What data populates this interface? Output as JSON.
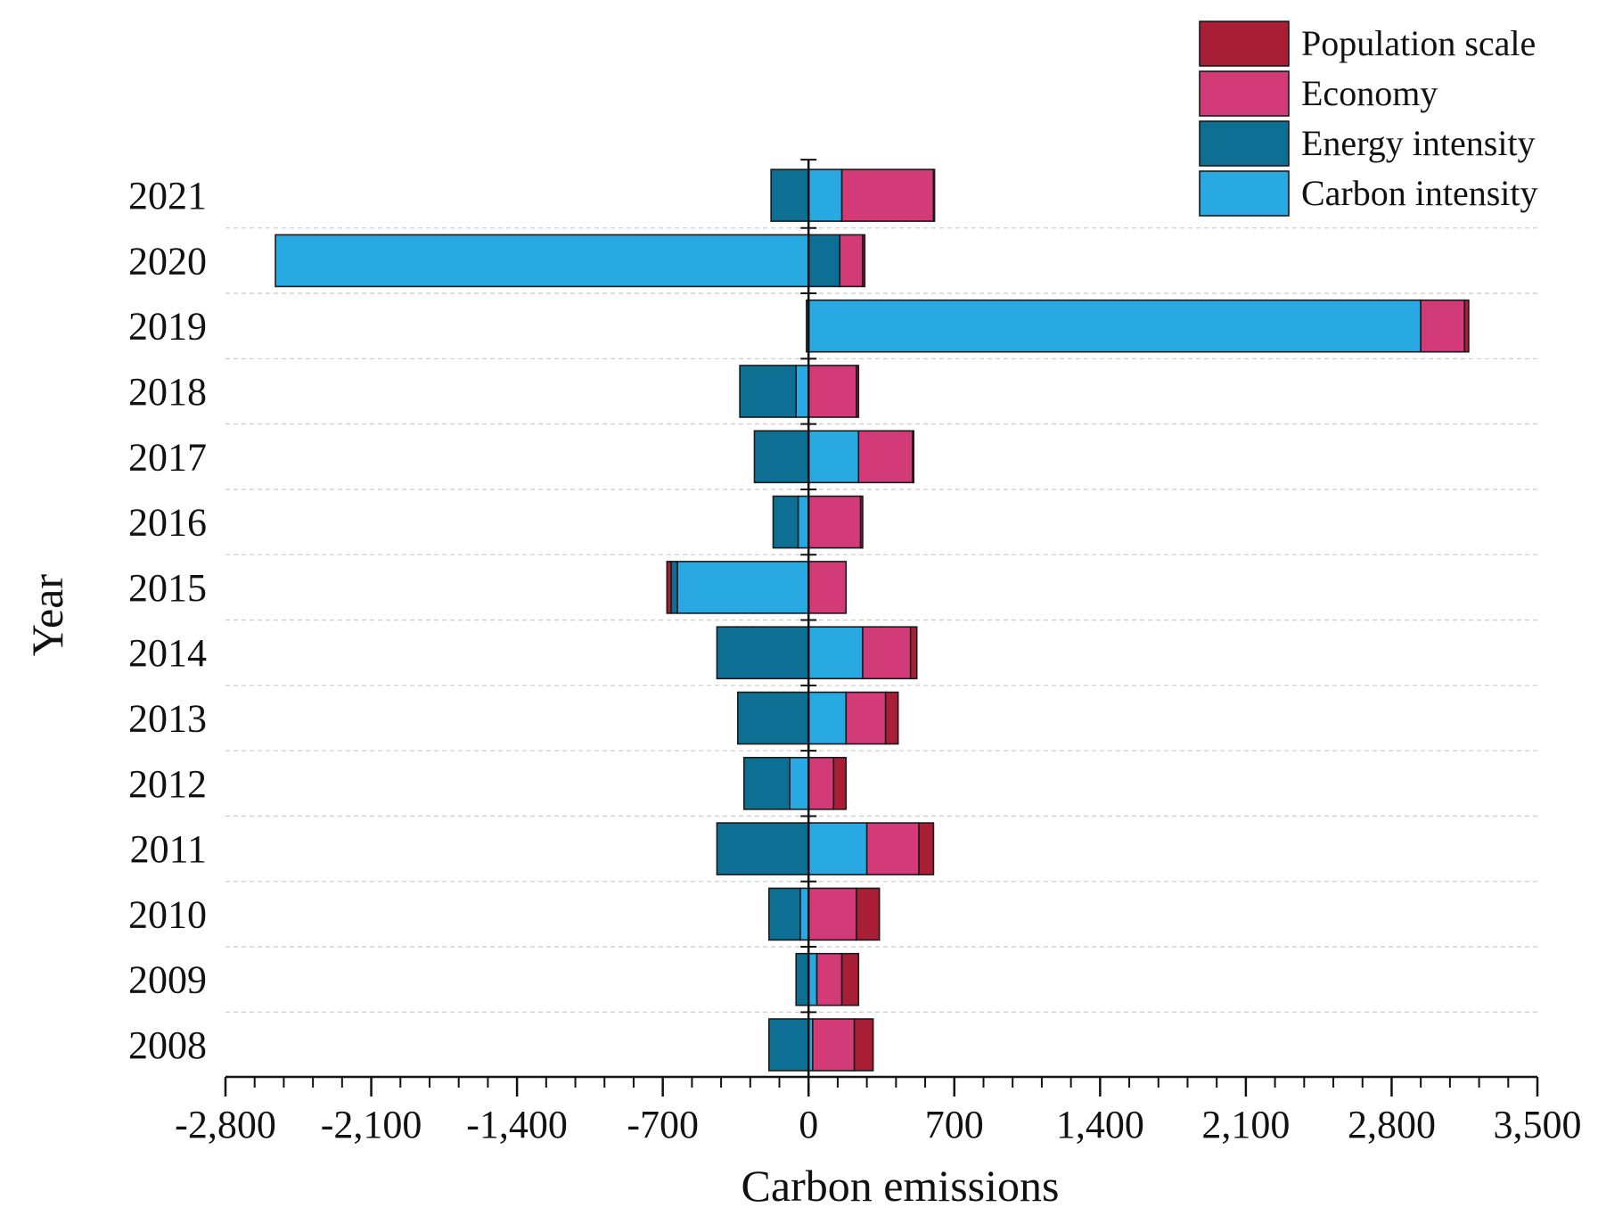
{
  "chart_data": {
    "type": "bar",
    "orientation": "horizontal",
    "stacking": "diverging",
    "xlabel": "Carbon emissions",
    "ylabel": "Year",
    "xlim": [
      -2800,
      3500
    ],
    "xticks": [
      -2800,
      -2100,
      -1400,
      -700,
      0,
      700,
      1400,
      2100,
      2800,
      3500
    ],
    "xtick_labels": [
      "-2,800",
      "-2,100",
      "-1,400",
      "-700",
      "0",
      "700",
      "1,400",
      "2,100",
      "2,800",
      "3,500"
    ],
    "categories": [
      "2008",
      "2009",
      "2010",
      "2011",
      "2012",
      "2013",
      "2014",
      "2015",
      "2016",
      "2017",
      "2018",
      "2019",
      "2020",
      "2021"
    ],
    "grid": "horizontal dashed",
    "legend_position": "top-right",
    "series": [
      {
        "name": "Carbon intensity",
        "color": "#29a9e1",
        "values": [
          20,
          40,
          -40,
          280,
          -90,
          180,
          260,
          -630,
          -50,
          240,
          -60,
          2940,
          -2560,
          160
        ]
      },
      {
        "name": "Energy intensity",
        "color": "#0e6f94",
        "values": [
          -190,
          -60,
          -150,
          -440,
          -220,
          -340,
          -440,
          -30,
          -120,
          -260,
          -270,
          -10,
          150,
          -180
        ]
      },
      {
        "name": "Economy",
        "color": "#d23a78",
        "values": [
          200,
          120,
          230,
          250,
          120,
          190,
          230,
          180,
          250,
          260,
          230,
          210,
          110,
          440
        ]
      },
      {
        "name": "Population scale",
        "color": "#a81e34",
        "values": [
          90,
          80,
          110,
          70,
          60,
          60,
          30,
          -20,
          10,
          5,
          10,
          20,
          10,
          5
        ]
      }
    ],
    "legend_order": [
      "Population scale",
      "Economy",
      "Energy intensity",
      "Carbon intensity"
    ]
  }
}
